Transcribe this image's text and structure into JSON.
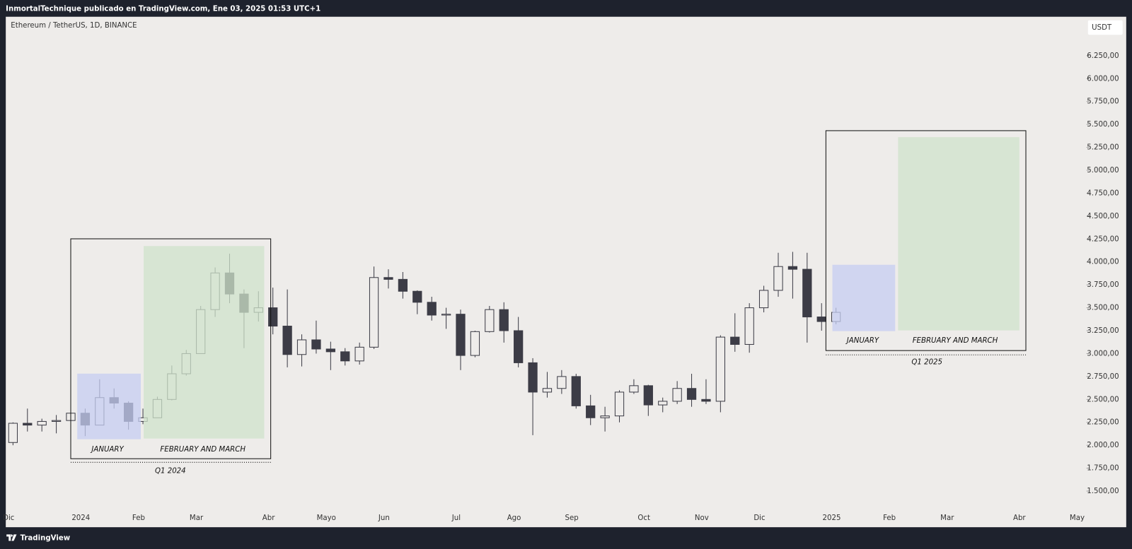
{
  "header": {
    "text": "InmortalTechnique publicado en TradingView.com, Ene 03, 2025 01:53 UTC+1"
  },
  "footer": {
    "brand": "TradingView"
  },
  "chart_data": {
    "type": "candlestick",
    "title": "Ethereum / TetherUS, 1D, BINANCE",
    "currency": "USDT",
    "background": "#eeecea",
    "up_color": "#eeecea",
    "down_color": "#3c3c46",
    "wick_color": "#3c3c46",
    "categories": [
      "Dic",
      null,
      null,
      null,
      null,
      "2024",
      null,
      null,
      null,
      "Feb",
      null,
      null,
      null,
      "Mar",
      null,
      null,
      null,
      null,
      "Abr",
      null,
      null,
      null,
      "Mayo",
      null,
      null,
      null,
      "Jun",
      null,
      null,
      null,
      null,
      "Jul",
      null,
      null,
      null,
      "Ago",
      null,
      null,
      null,
      "Sep",
      null,
      null,
      null,
      null,
      "Oct",
      null,
      null,
      null,
      "Nov",
      null,
      null,
      null,
      "Dic",
      null,
      null,
      null,
      null,
      "2025",
      null,
      null,
      null,
      "Feb",
      null,
      null,
      null,
      "Mar",
      null,
      null,
      null,
      null,
      "Abr",
      null,
      null,
      null,
      "May"
    ],
    "open": [
      2030,
      2240,
      2220,
      2260,
      2270,
      2350,
      2220,
      2520,
      2460,
      2260,
      2300,
      2500,
      2780,
      3000,
      3480,
      3880,
      3650,
      3450,
      3500,
      3300,
      2990,
      3150,
      3050,
      3020,
      2920,
      3070,
      3830,
      3810,
      3680,
      3560,
      3420,
      3430,
      2980,
      3240,
      3480,
      3250,
      2900,
      2580,
      2620,
      2750,
      2430,
      2300,
      2320,
      2580,
      2650,
      2440,
      2480,
      2620,
      2500,
      2480,
      3180,
      3100,
      3500,
      3690,
      3950,
      3920,
      3400,
      3350,
      null,
      null,
      null,
      null,
      null,
      null,
      null,
      null,
      null,
      null,
      null,
      null,
      null,
      null,
      null,
      null,
      null
    ],
    "high": [
      2250,
      2400,
      2290,
      2330,
      2440,
      2400,
      2720,
      2620,
      2480,
      2400,
      2530,
      2870,
      3040,
      3520,
      3940,
      4090,
      3700,
      3680,
      3720,
      3700,
      3210,
      3360,
      3130,
      3060,
      3120,
      3950,
      3920,
      3890,
      3690,
      3620,
      3500,
      3480,
      3250,
      3520,
      3560,
      3400,
      2950,
      2800,
      2820,
      2780,
      2550,
      2420,
      2600,
      2720,
      2660,
      2520,
      2700,
      2780,
      2720,
      3200,
      3440,
      3550,
      3740,
      4100,
      4110,
      4100,
      3550,
      3500,
      null,
      null,
      null,
      null,
      null,
      null,
      null,
      null,
      null,
      null,
      null,
      null,
      null,
      null,
      null,
      null,
      null
    ],
    "low": [
      2000,
      2150,
      2150,
      2130,
      2200,
      2100,
      2220,
      2400,
      2170,
      2230,
      2300,
      2490,
      2760,
      3000,
      3400,
      3550,
      3060,
      3350,
      3210,
      2850,
      2860,
      3000,
      2820,
      2870,
      2880,
      3050,
      3710,
      3600,
      3430,
      3360,
      3270,
      2820,
      2960,
      3230,
      3120,
      2850,
      2110,
      2520,
      2560,
      2400,
      2220,
      2150,
      2250,
      2560,
      2320,
      2360,
      2450,
      2420,
      2450,
      2360,
      3020,
      3010,
      3450,
      3620,
      3600,
      3120,
      3250,
      3320,
      null,
      null,
      null,
      null,
      null,
      null,
      null,
      null,
      null,
      null,
      null,
      null,
      null,
      null,
      null,
      null,
      null
    ],
    "close": [
      2240,
      2220,
      2260,
      2270,
      2350,
      2220,
      2520,
      2460,
      2260,
      2300,
      2500,
      2780,
      3000,
      3480,
      3880,
      3650,
      3450,
      3500,
      3300,
      2990,
      3150,
      3050,
      3020,
      2920,
      3070,
      3830,
      3810,
      3680,
      3560,
      3420,
      3430,
      2980,
      3240,
      3480,
      3250,
      2900,
      2580,
      2620,
      2750,
      2430,
      2300,
      2320,
      2580,
      2650,
      2440,
      2480,
      2620,
      2500,
      2480,
      3180,
      3100,
      3500,
      3690,
      3950,
      3920,
      3400,
      3350,
      3450,
      null,
      null,
      null,
      null,
      null,
      null,
      null,
      null,
      null,
      null,
      null,
      null,
      null,
      null,
      null,
      null,
      null
    ],
    "ylim": [
      1106,
      6675
    ],
    "yticks": [
      {
        "value": 1500,
        "label": "1.500,00"
      },
      {
        "value": 1750,
        "label": "1.750,00"
      },
      {
        "value": 2000,
        "label": "2.000,00"
      },
      {
        "value": 2250,
        "label": "2.250,00"
      },
      {
        "value": 2500,
        "label": "2.500,00"
      },
      {
        "value": 2750,
        "label": "2.750,00"
      },
      {
        "value": 3000,
        "label": "3.000,00"
      },
      {
        "value": 3250,
        "label": "3.250,00"
      },
      {
        "value": 3500,
        "label": "3.500,00"
      },
      {
        "value": 3750,
        "label": "3.750,00"
      },
      {
        "value": 4000,
        "label": "4.000,00"
      },
      {
        "value": 4250,
        "label": "4.250,00"
      },
      {
        "value": 4500,
        "label": "4.500,00"
      },
      {
        "value": 4750,
        "label": "4.750,00"
      },
      {
        "value": 5000,
        "label": "5.000,00"
      },
      {
        "value": 5250,
        "label": "5.250,00"
      },
      {
        "value": 5500,
        "label": "5.500,00"
      },
      {
        "value": 5750,
        "label": "5.750,00"
      },
      {
        "value": 6000,
        "label": "6.000,00"
      },
      {
        "value": 6250,
        "label": "6.250,00"
      }
    ],
    "annotations": [
      "JANUARY",
      "FEBRUARY AND MARCH",
      "Q1 2024",
      "JANUARY",
      "FEBRUARY AND MARCH",
      "Q1 2025"
    ]
  }
}
